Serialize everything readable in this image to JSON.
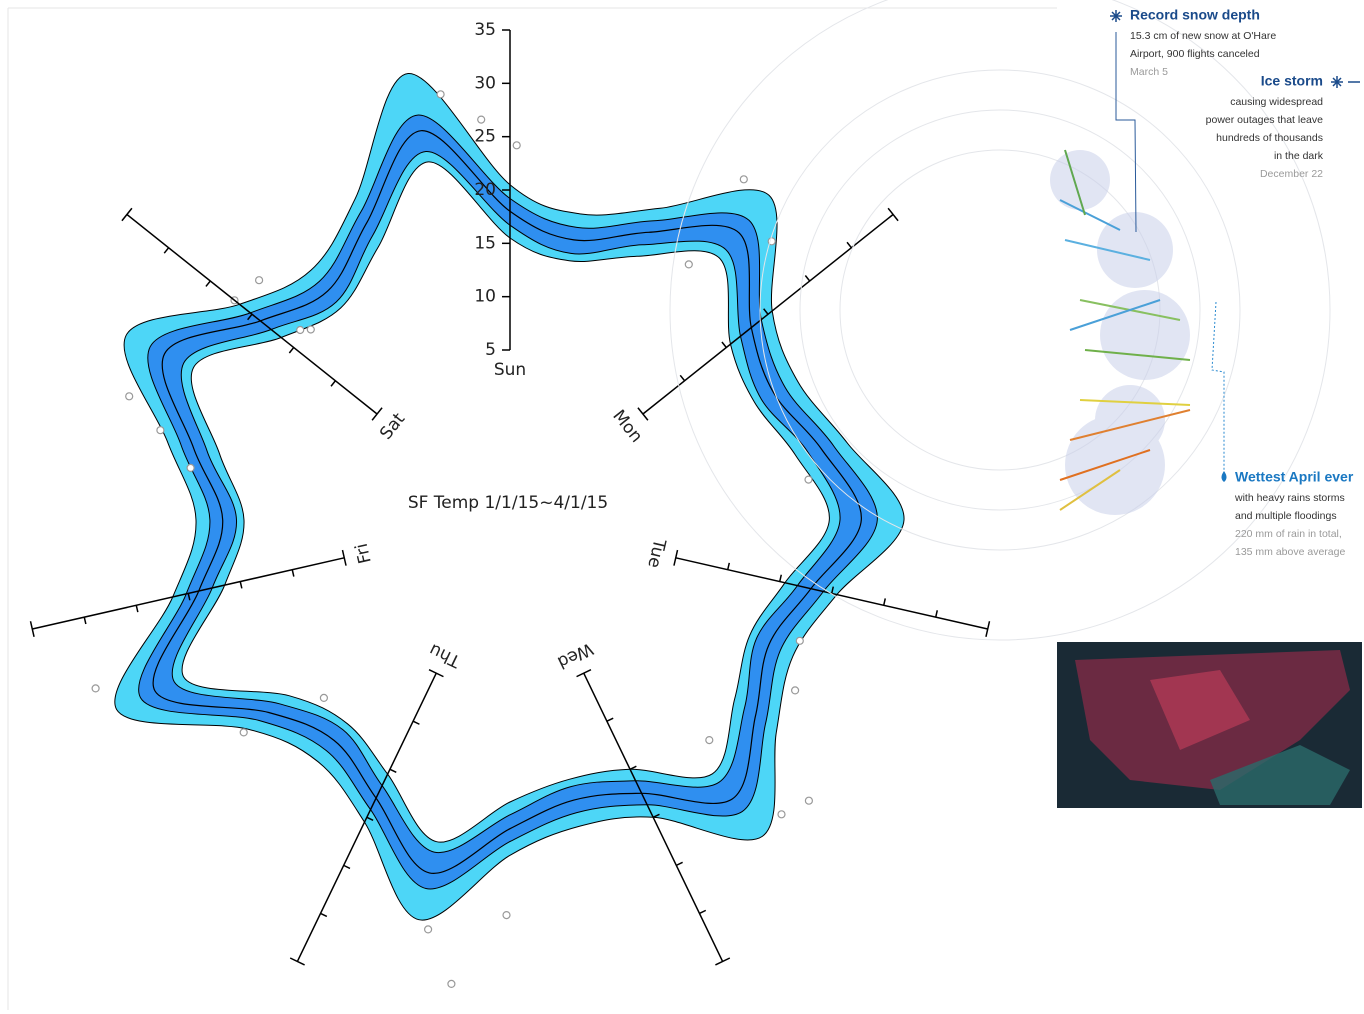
{
  "chart_data": {
    "type": "radial-band",
    "title": "SF Temp 1/1/15~4/1/15",
    "axes": [
      "Sun",
      "Mon",
      "Tue",
      "Wed",
      "Thu",
      "Fri",
      "Sat"
    ],
    "rlim": [
      5,
      35
    ],
    "rticks": [
      5,
      10,
      15,
      20,
      25,
      30,
      35
    ],
    "bands": {
      "max": [
        20.5,
        18.5,
        21.5,
        28,
        20.5,
        19,
        21.5,
        26,
        20.5,
        18.5,
        21,
        27,
        20,
        18.5,
        20.5,
        27.5,
        20.5,
        18,
        20.5,
        30,
        21.5,
        18.5,
        22,
        29,
        21.5,
        19,
        22.5,
        32
      ],
      "q3": [
        19.2,
        17.2,
        20.2,
        25,
        19.2,
        17.7,
        20.2,
        23.5,
        19.2,
        17.2,
        19.7,
        24,
        18.7,
        17.2,
        19.2,
        24.5,
        19.2,
        16.7,
        19.2,
        27.5,
        20.2,
        17.2,
        20.7,
        26.5,
        20.2,
        17.7,
        21.2,
        28
      ],
      "median": [
        18,
        16,
        19,
        23.5,
        18,
        16.5,
        19,
        22,
        18,
        16,
        18.5,
        22.5,
        17.5,
        16,
        18,
        23,
        18,
        15.5,
        18,
        26,
        19,
        16,
        19.5,
        25,
        19,
        16.5,
        20,
        26.5
      ],
      "q1": [
        16.7,
        14.7,
        17.7,
        21.5,
        16.7,
        15.2,
        17.7,
        20,
        16.7,
        14.7,
        17.2,
        20.5,
        16.2,
        14.7,
        16.7,
        21,
        16.7,
        14.2,
        16.7,
        24,
        17.7,
        14.7,
        18.2,
        23,
        17.7,
        15.2,
        18.7,
        24.5
      ],
      "min": [
        15.5,
        14,
        16.5,
        20.5,
        15.5,
        14.5,
        16.5,
        19,
        15.5,
        14,
        16,
        19.5,
        15,
        14,
        15.5,
        20,
        15.5,
        13.5,
        15.5,
        23,
        16.5,
        14,
        17,
        22,
        16.5,
        14.5,
        17.5,
        23.5
      ]
    },
    "outer_color": "#4dd6f7",
    "inner_color": "#2f8ff0",
    "outliers": {
      "x": [
        0.02,
        0.67,
        0.84,
        0.68,
        1.6,
        2.19,
        2.35,
        2.68,
        2.67,
        2.59,
        3.51,
        3.72,
        3.64,
        4.4,
        4.5,
        4.82,
        5.43,
        5.53,
        5.6,
        6.07,
        6.1,
        6.0,
        6.1,
        6.82,
        6.92
      ],
      "values": [
        24.2,
        27.8,
        24.9,
        18.3,
        17.3,
        18.5,
        20.2,
        16.9,
        26.6,
        27.5,
        26.1,
        28.2,
        32.9,
        13.2,
        21,
        31,
        19.4,
        22.9,
        26.6,
        15.6,
        14.9,
        22.1,
        21.6,
        29.5,
        26.7
      ]
    }
  },
  "sidebar": {
    "events": [
      {
        "title": "Record snow depth",
        "lines": [
          "15.3 cm of new snow at O'Hare",
          "Airport, 900 flights canceled"
        ],
        "date": "March 5"
      },
      {
        "title": "Ice storm",
        "lines": [
          "causing widespread",
          "power outages that leave",
          "hundreds of thousands",
          "in the dark"
        ],
        "date": "December 22"
      },
      {
        "title": "Wettest April ever",
        "lines": [
          "with heavy rains storms",
          "and multiple floodings"
        ],
        "date": "220 mm of rain in total,",
        "note": "135 mm above average"
      }
    ]
  }
}
